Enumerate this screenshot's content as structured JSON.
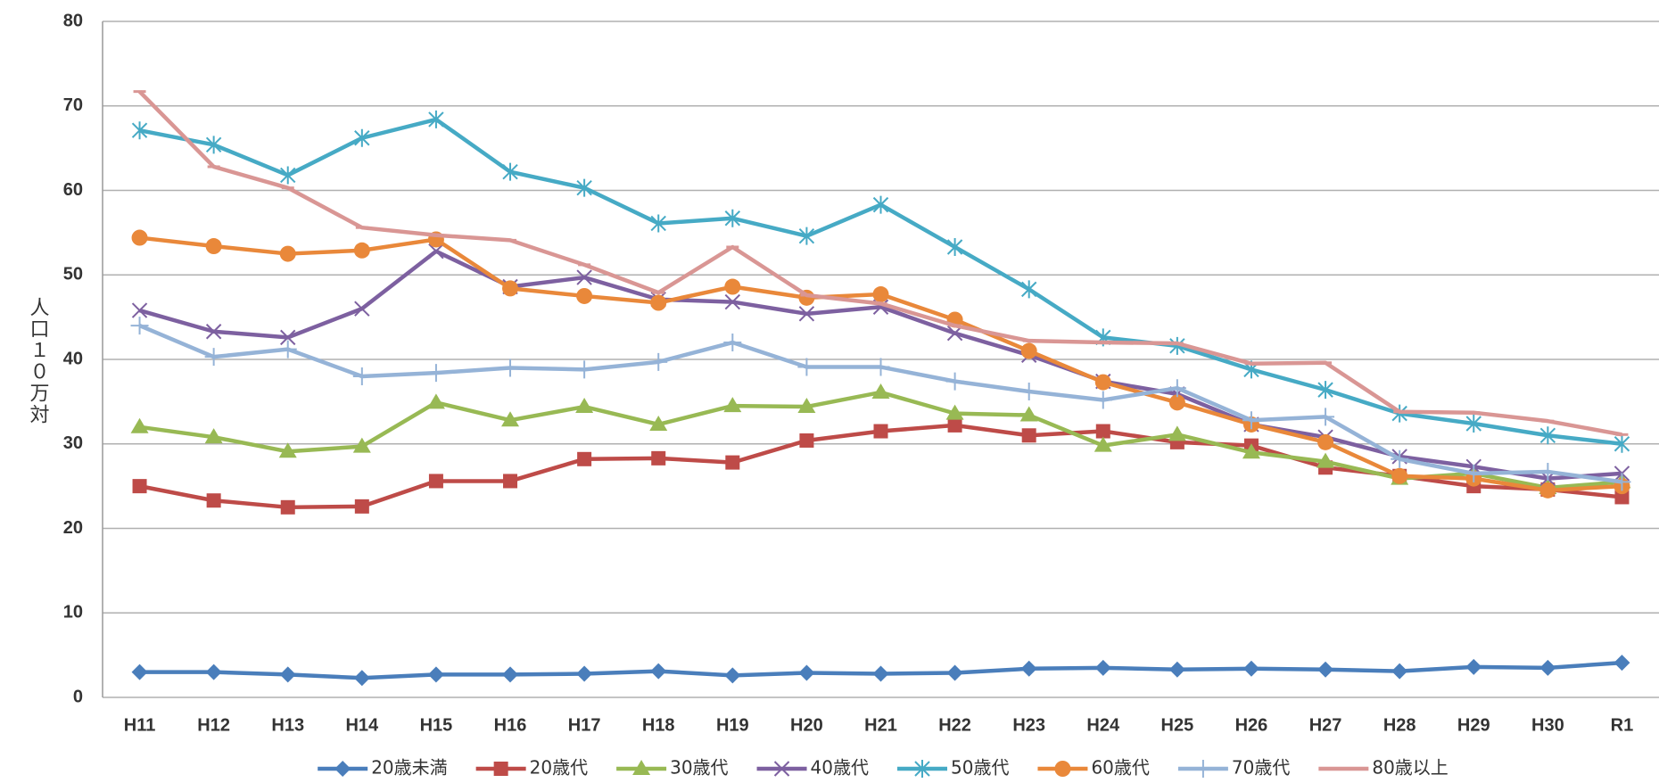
{
  "chart_data": {
    "type": "line",
    "y_label": "人口１０万対",
    "categories": [
      "H11",
      "H12",
      "H13",
      "H14",
      "H15",
      "H16",
      "H17",
      "H18",
      "H19",
      "H20",
      "H21",
      "H22",
      "H23",
      "H24",
      "H25",
      "H26",
      "H27",
      "H28",
      "H29",
      "H30",
      "R1"
    ],
    "ylim": [
      0,
      80
    ],
    "yticks": [
      0,
      10,
      20,
      30,
      40,
      50,
      60,
      70,
      80
    ],
    "grid": true,
    "legend": "bottom",
    "series": [
      {
        "name": "20歳未満",
        "color": "#4a7ebb",
        "marker": "diamond",
        "values": [
          3.0,
          3.0,
          2.7,
          2.3,
          2.7,
          2.7,
          2.8,
          3.1,
          2.6,
          2.9,
          2.8,
          2.9,
          3.4,
          3.5,
          3.3,
          3.4,
          3.3,
          3.1,
          3.6,
          3.5,
          4.1
        ]
      },
      {
        "name": "20歳代",
        "color": "#be4b48",
        "marker": "square",
        "values": [
          25.0,
          23.3,
          22.5,
          22.6,
          25.6,
          25.6,
          28.2,
          28.3,
          27.8,
          30.4,
          31.5,
          32.2,
          31.0,
          31.5,
          30.2,
          29.8,
          27.2,
          26.2,
          25.0,
          24.6,
          23.7
        ]
      },
      {
        "name": "30歳代",
        "color": "#98b954",
        "marker": "triangle",
        "values": [
          32.0,
          30.8,
          29.1,
          29.7,
          34.9,
          32.8,
          34.4,
          32.3,
          34.5,
          34.4,
          36.1,
          33.6,
          33.4,
          29.8,
          31.1,
          29.0,
          27.9,
          25.9,
          26.5,
          24.8,
          25.5
        ]
      },
      {
        "name": "40歳代",
        "color": "#7d60a0",
        "marker": "x",
        "values": [
          45.8,
          43.3,
          42.6,
          46.0,
          52.8,
          48.6,
          49.7,
          47.1,
          46.8,
          45.4,
          46.2,
          43.1,
          40.5,
          37.4,
          35.9,
          32.3,
          30.8,
          28.5,
          27.3,
          25.9,
          26.5
        ]
      },
      {
        "name": "50歳代",
        "color": "#46aac5",
        "marker": "star",
        "values": [
          67.1,
          65.4,
          61.8,
          66.2,
          68.4,
          62.2,
          60.3,
          56.1,
          56.7,
          54.6,
          58.3,
          53.3,
          48.3,
          42.6,
          41.6,
          38.8,
          36.4,
          33.6,
          32.4,
          31.0,
          30.0
        ]
      },
      {
        "name": "60歳代",
        "color": "#e9883a",
        "marker": "circle",
        "values": [
          54.4,
          53.4,
          52.5,
          52.9,
          54.2,
          48.4,
          47.5,
          46.7,
          48.6,
          47.3,
          47.7,
          44.7,
          41.0,
          37.3,
          34.9,
          32.3,
          30.2,
          26.2,
          25.9,
          24.5,
          25.0
        ]
      },
      {
        "name": "70歳代",
        "color": "#95b3d7",
        "marker": "plus",
        "values": [
          44.0,
          40.3,
          41.2,
          38.0,
          38.4,
          39.0,
          38.8,
          39.7,
          42.0,
          39.1,
          39.1,
          37.4,
          36.2,
          35.2,
          36.6,
          32.8,
          33.2,
          28.2,
          26.5,
          26.7,
          25.5
        ]
      },
      {
        "name": "80歳以上",
        "color": "#d99694",
        "marker": "dash",
        "values": [
          71.7,
          62.8,
          60.3,
          55.6,
          54.7,
          54.1,
          51.2,
          47.9,
          53.3,
          47.6,
          46.6,
          44.0,
          42.2,
          42.0,
          41.9,
          39.5,
          39.6,
          33.8,
          33.7,
          32.7,
          31.1
        ]
      }
    ]
  }
}
